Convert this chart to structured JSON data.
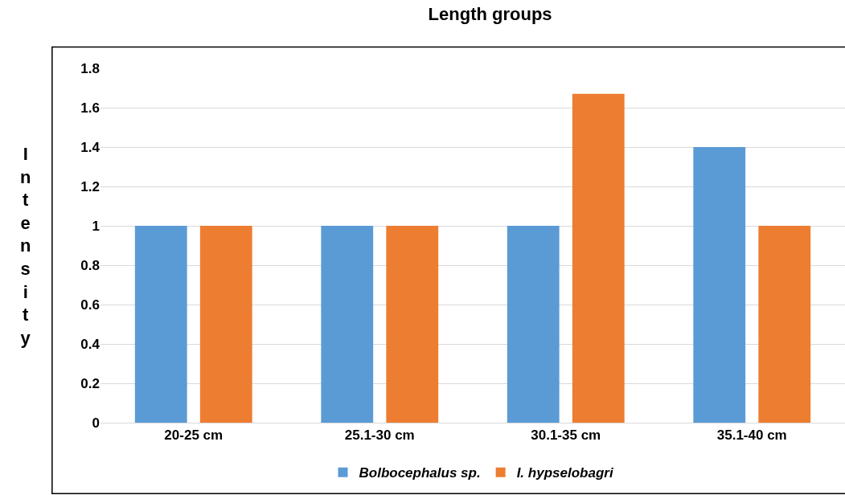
{
  "chart_data": {
    "type": "bar",
    "title": "Length groups",
    "ylabel": "Intensity",
    "categories": [
      "20-25 cm",
      "25.1-30 cm",
      "30.1-35 cm",
      "35.1-40 cm"
    ],
    "series": [
      {
        "name": "Bolbocephalus sp.",
        "color": "#5b9bd5",
        "values": [
          1,
          1,
          1,
          1.4
        ]
      },
      {
        "name": "I. hypselobagri",
        "color": "#ed7d31",
        "values": [
          1,
          1,
          1.67,
          1
        ]
      }
    ],
    "ylim": [
      0,
      1.8
    ],
    "yticks": [
      0,
      0.2,
      0.4,
      0.6,
      0.8,
      1,
      1.2,
      1.4,
      1.6,
      1.8
    ],
    "grid": "y",
    "legend": "bottom"
  }
}
